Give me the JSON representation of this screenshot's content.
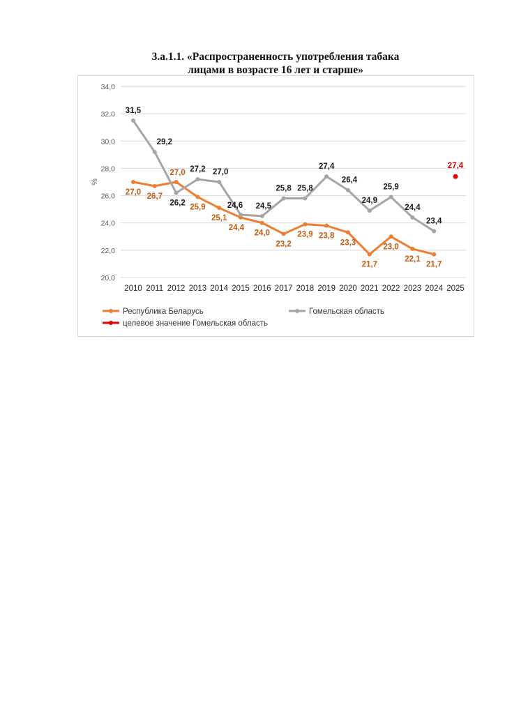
{
  "chart_data": {
    "type": "line",
    "title_line1": "3.a.1.1. «Распространенность употребления табака",
    "title_line2": "лицами в возрасте 16 лет и старше»",
    "ylabel": "%",
    "xlabel": "",
    "ylim": [
      20,
      34
    ],
    "yticks": [
      "20,0",
      "22,0",
      "24,0",
      "26,0",
      "28,0",
      "30,0",
      "32,0",
      "34,0"
    ],
    "categories": [
      "2010",
      "2011",
      "2012",
      "2013",
      "2014",
      "2015",
      "2016",
      "2017",
      "2018",
      "2019",
      "2020",
      "2021",
      "2022",
      "2023",
      "2024",
      "2025"
    ],
    "grid": true,
    "legend_position": "bottom",
    "series": [
      {
        "name": "Республика Беларусь",
        "color": "#ed7d31",
        "label_color": "#c55a11",
        "values": [
          27.0,
          26.7,
          27.0,
          25.9,
          25.1,
          24.4,
          24.0,
          23.2,
          23.9,
          23.8,
          23.3,
          21.7,
          23.0,
          22.1,
          21.7,
          null
        ],
        "labels": [
          "27,0",
          "26,7",
          "27,0",
          "25,9",
          "25,1",
          "24,4",
          "24,0",
          "23,2",
          "23,9",
          "23,8",
          "23,3",
          "21,7",
          "23,0",
          "22,1",
          "21,7",
          null
        ]
      },
      {
        "name": "Гомельская область",
        "color": "#a5a5a5",
        "label_color": "#1a1a1a",
        "values": [
          31.5,
          29.2,
          26.2,
          27.2,
          27.0,
          24.6,
          24.5,
          25.8,
          25.8,
          27.4,
          26.4,
          24.9,
          25.9,
          24.4,
          23.4,
          null
        ],
        "labels": [
          "31,5",
          "29,2",
          "26,2",
          "27,2",
          "27,0",
          "24,6",
          "24,5",
          "25,8",
          "25,8",
          "27,4",
          "26,4",
          "24,9",
          "25,9",
          "24,4",
          "23,4",
          null
        ]
      },
      {
        "name": "целевое значение Гомельская область",
        "color": "#e00000",
        "label_color": "#e00000",
        "values": [
          null,
          null,
          null,
          null,
          null,
          null,
          null,
          null,
          null,
          null,
          null,
          null,
          null,
          null,
          null,
          27.4
        ],
        "labels": [
          null,
          null,
          null,
          null,
          null,
          null,
          null,
          null,
          null,
          null,
          null,
          null,
          null,
          null,
          null,
          "27,4"
        ]
      }
    ]
  }
}
